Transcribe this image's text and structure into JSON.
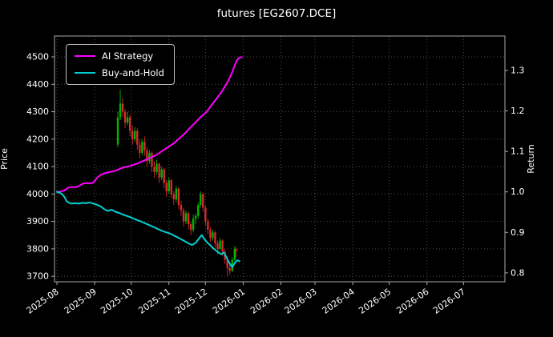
{
  "chart": {
    "title": "futures [EG2607.DCE]",
    "ylabel_left": "Price",
    "ylabel_right": "Return",
    "background_color": "#000000",
    "text_color": "#ffffff",
    "grid_color": "#4d4d4d",
    "frame_color": "#aaaaaa"
  },
  "legend": {
    "items": [
      {
        "label": "AI Strategy",
        "color": "#ff00ff"
      },
      {
        "label": "Buy-and-Hold",
        "color": "#00ced1"
      }
    ]
  },
  "chart_data": {
    "type": "mixed",
    "subtypes": [
      "candlestick",
      "line"
    ],
    "title": "futures [EG2607.DCE]",
    "x_unit": "days since 2025-08-01",
    "x_domain": [
      -2,
      368
    ],
    "x_ticks": [
      {
        "day": 0,
        "label": "2025-08"
      },
      {
        "day": 31,
        "label": "2025-09"
      },
      {
        "day": 61,
        "label": "2025-10"
      },
      {
        "day": 92,
        "label": "2025-11"
      },
      {
        "day": 122,
        "label": "2025-12"
      },
      {
        "day": 153,
        "label": "2026-01"
      },
      {
        "day": 184,
        "label": "2026-02"
      },
      {
        "day": 212,
        "label": "2026-03"
      },
      {
        "day": 243,
        "label": "2026-04"
      },
      {
        "day": 273,
        "label": "2026-05"
      },
      {
        "day": 304,
        "label": "2026-06"
      },
      {
        "day": 334,
        "label": "2026-07"
      }
    ],
    "price_axis": {
      "label": "Price",
      "min": 3680,
      "max": 4576,
      "ticks": [
        "3700",
        "3800",
        "3900",
        "4000",
        "4100",
        "4200",
        "4300",
        "4400",
        "4500"
      ]
    },
    "return_axis": {
      "label": "Return",
      "min": 0.778,
      "max": 1.385,
      "ticks": [
        "0.8",
        "0.9",
        "1.0",
        "1.1",
        "1.2",
        "1.3"
      ]
    },
    "grid": true,
    "legend_position": "upper-left",
    "series": [
      {
        "name": "AI Strategy",
        "axis": "return",
        "color": "#ff00ff",
        "width": 2,
        "points": [
          [
            0,
            1.0
          ],
          [
            3,
            1.001
          ],
          [
            6,
            1.003
          ],
          [
            9,
            1.01
          ],
          [
            12,
            1.012
          ],
          [
            15,
            1.012
          ],
          [
            18,
            1.014
          ],
          [
            21,
            1.02
          ],
          [
            24,
            1.022
          ],
          [
            27,
            1.021
          ],
          [
            30,
            1.023
          ],
          [
            33,
            1.035
          ],
          [
            36,
            1.042
          ],
          [
            39,
            1.046
          ],
          [
            42,
            1.048
          ],
          [
            45,
            1.05
          ],
          [
            48,
            1.052
          ],
          [
            51,
            1.056
          ],
          [
            54,
            1.06
          ],
          [
            57,
            1.062
          ],
          [
            60,
            1.064
          ],
          [
            63,
            1.067
          ],
          [
            66,
            1.07
          ],
          [
            69,
            1.074
          ],
          [
            72,
            1.078
          ],
          [
            75,
            1.082
          ],
          [
            78,
            1.086
          ],
          [
            81,
            1.09
          ],
          [
            84,
            1.096
          ],
          [
            87,
            1.102
          ],
          [
            90,
            1.108
          ],
          [
            93,
            1.114
          ],
          [
            96,
            1.12
          ],
          [
            99,
            1.128
          ],
          [
            102,
            1.136
          ],
          [
            105,
            1.144
          ],
          [
            108,
            1.154
          ],
          [
            111,
            1.163
          ],
          [
            114,
            1.172
          ],
          [
            117,
            1.182
          ],
          [
            120,
            1.19
          ],
          [
            123,
            1.198
          ],
          [
            126,
            1.21
          ],
          [
            129,
            1.222
          ],
          [
            132,
            1.234
          ],
          [
            135,
            1.246
          ],
          [
            138,
            1.26
          ],
          [
            141,
            1.276
          ],
          [
            144,
            1.296
          ],
          [
            146,
            1.312
          ],
          [
            148,
            1.326
          ],
          [
            150,
            1.332
          ],
          [
            152,
            1.333
          ]
        ]
      },
      {
        "name": "Buy-and-Hold",
        "axis": "return",
        "color": "#00ced1",
        "width": 2,
        "points": [
          [
            0,
            1.0
          ],
          [
            2,
            0.998
          ],
          [
            4,
            0.995
          ],
          [
            6,
            0.988
          ],
          [
            8,
            0.977
          ],
          [
            10,
            0.973
          ],
          [
            12,
            0.971
          ],
          [
            15,
            0.972
          ],
          [
            18,
            0.971
          ],
          [
            21,
            0.973
          ],
          [
            24,
            0.972
          ],
          [
            27,
            0.974
          ],
          [
            30,
            0.971
          ],
          [
            33,
            0.968
          ],
          [
            36,
            0.964
          ],
          [
            39,
            0.957
          ],
          [
            42,
            0.953
          ],
          [
            45,
            0.956
          ],
          [
            48,
            0.951
          ],
          [
            51,
            0.948
          ],
          [
            54,
            0.944
          ],
          [
            57,
            0.941
          ],
          [
            60,
            0.938
          ],
          [
            63,
            0.934
          ],
          [
            66,
            0.93
          ],
          [
            69,
            0.927
          ],
          [
            72,
            0.923
          ],
          [
            75,
            0.919
          ],
          [
            78,
            0.915
          ],
          [
            81,
            0.911
          ],
          [
            84,
            0.907
          ],
          [
            87,
            0.903
          ],
          [
            90,
            0.9
          ],
          [
            93,
            0.897
          ],
          [
            96,
            0.892
          ],
          [
            99,
            0.888
          ],
          [
            102,
            0.883
          ],
          [
            105,
            0.878
          ],
          [
            108,
            0.873
          ],
          [
            111,
            0.869
          ],
          [
            114,
            0.874
          ],
          [
            116,
            0.882
          ],
          [
            118,
            0.89
          ],
          [
            119,
            0.893
          ],
          [
            121,
            0.884
          ],
          [
            123,
            0.876
          ],
          [
            126,
            0.868
          ],
          [
            129,
            0.859
          ],
          [
            132,
            0.852
          ],
          [
            135,
            0.846
          ],
          [
            137,
            0.85
          ],
          [
            139,
            0.84
          ],
          [
            141,
            0.828
          ],
          [
            143,
            0.818
          ],
          [
            144,
            0.814
          ],
          [
            146,
            0.824
          ],
          [
            148,
            0.831
          ],
          [
            150,
            0.829
          ]
        ]
      }
    ],
    "candles": {
      "axis": "price",
      "up_color": "#00b400",
      "down_color": "#d62c2c",
      "format": "[day, open, high, low, close]",
      "ohlc": [
        [
          50,
          4180,
          4300,
          4170,
          4280
        ],
        [
          52,
          4280,
          4380,
          4270,
          4330
        ],
        [
          54,
          4330,
          4350,
          4280,
          4300
        ],
        [
          56,
          4300,
          4310,
          4240,
          4260
        ],
        [
          58,
          4260,
          4300,
          4250,
          4280
        ],
        [
          60,
          4280,
          4290,
          4210,
          4230
        ],
        [
          62,
          4230,
          4250,
          4180,
          4200
        ],
        [
          64,
          4200,
          4245,
          4190,
          4230
        ],
        [
          66,
          4230,
          4240,
          4160,
          4180
        ],
        [
          68,
          4180,
          4200,
          4130,
          4150
        ],
        [
          70,
          4150,
          4200,
          4140,
          4190
        ],
        [
          72,
          4190,
          4210,
          4140,
          4160
        ],
        [
          74,
          4160,
          4170,
          4100,
          4120
        ],
        [
          76,
          4120,
          4160,
          4110,
          4150
        ],
        [
          78,
          4150,
          4155,
          4080,
          4100
        ],
        [
          80,
          4100,
          4120,
          4060,
          4080
        ],
        [
          82,
          4080,
          4125,
          4070,
          4110
        ],
        [
          84,
          4110,
          4115,
          4040,
          4060
        ],
        [
          86,
          4060,
          4100,
          4050,
          4090
        ],
        [
          88,
          4090,
          4095,
          4020,
          4040
        ],
        [
          90,
          4040,
          4050,
          3990,
          4010
        ],
        [
          92,
          4010,
          4060,
          4000,
          4050
        ],
        [
          94,
          4050,
          4055,
          3985,
          4000
        ],
        [
          96,
          4000,
          4010,
          3960,
          3980
        ],
        [
          98,
          3980,
          4030,
          3970,
          4020
        ],
        [
          100,
          4020,
          4025,
          3945,
          3960
        ],
        [
          102,
          3960,
          3975,
          3920,
          3940
        ],
        [
          104,
          3940,
          3950,
          3880,
          3900
        ],
        [
          106,
          3900,
          3940,
          3890,
          3930
        ],
        [
          108,
          3930,
          3935,
          3870,
          3890
        ],
        [
          110,
          3890,
          3900,
          3850,
          3870
        ],
        [
          112,
          3870,
          3925,
          3860,
          3910
        ],
        [
          114,
          3910,
          3930,
          3890,
          3920
        ],
        [
          116,
          3920,
          3970,
          3910,
          3960
        ],
        [
          118,
          3960,
          4010,
          3950,
          4000
        ],
        [
          120,
          4000,
          4005,
          3935,
          3950
        ],
        [
          122,
          3950,
          3960,
          3885,
          3900
        ],
        [
          124,
          3900,
          3910,
          3855,
          3870
        ],
        [
          126,
          3870,
          3880,
          3825,
          3840
        ],
        [
          128,
          3840,
          3870,
          3830,
          3860
        ],
        [
          130,
          3860,
          3865,
          3805,
          3820
        ],
        [
          132,
          3820,
          3830,
          3780,
          3800
        ],
        [
          134,
          3800,
          3840,
          3795,
          3830
        ],
        [
          136,
          3830,
          3835,
          3775,
          3790
        ],
        [
          138,
          3790,
          3800,
          3745,
          3760
        ],
        [
          140,
          3760,
          3770,
          3700,
          3730
        ],
        [
          142,
          3730,
          3745,
          3705,
          3720
        ],
        [
          144,
          3720,
          3770,
          3715,
          3760
        ],
        [
          146,
          3760,
          3810,
          3755,
          3800
        ],
        [
          147,
          3800,
          3805,
          3770,
          3790
        ]
      ]
    }
  }
}
